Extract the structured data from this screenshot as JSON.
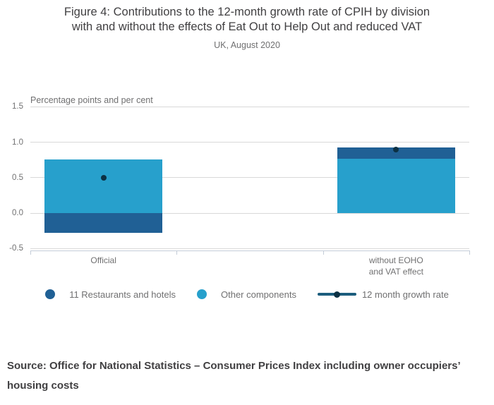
{
  "header": {
    "title_line1": "Figure 4: Contributions to the 12-month growth rate of CPIH by division",
    "title_line2": "with and without the effects of Eat Out to Help Out and reduced VAT",
    "subtitle": "UK, August 2020"
  },
  "chart_data": {
    "type": "bar",
    "stacked": true,
    "title": "Figure 4: Contributions to the 12-month growth rate of CPIH by division with and without the effects of Eat Out to Help Out and reduced VAT",
    "subtitle": "UK, August 2020",
    "axis_title": "Percentage points and per cent",
    "ylim": [
      -0.5,
      1.5
    ],
    "ytick_labels": [
      "1.5",
      "1.0",
      "0.5",
      "0.0",
      "-0.5"
    ],
    "grid": true,
    "legend_position": "bottom",
    "categories": [
      "Official",
      "without EOHO and VAT effect"
    ],
    "category_label_lines": [
      [
        "Official"
      ],
      [
        "without EOHO",
        "and VAT effect"
      ]
    ],
    "series": [
      {
        "name": "11 Restaurants and hotels",
        "type": "column",
        "marker": "circle",
        "color": "#206095",
        "values": [
          -0.28,
          0.16
        ]
      },
      {
        "name": "Other components",
        "type": "column",
        "marker": "circle",
        "color": "#27a0cc",
        "values": [
          0.76,
          0.77
        ]
      },
      {
        "name": "12 month growth rate",
        "type": "line",
        "marker": "line-dot",
        "color": "#0c3144",
        "line_color": "#1c5d7d",
        "values": [
          0.5,
          0.9
        ]
      }
    ]
  },
  "source": {
    "text": "Source: Office for National Statistics – Consumer Prices Index including owner occupiers’ housing costs"
  },
  "colors": {
    "restaurants": "#206095",
    "other_components": "#27a0cc",
    "growth_rate_dot": "#0c3144",
    "gridline": "#d9d9d9",
    "axis_line": "#c3ccd8",
    "text_muted": "#707071",
    "text_dark": "#414042"
  }
}
